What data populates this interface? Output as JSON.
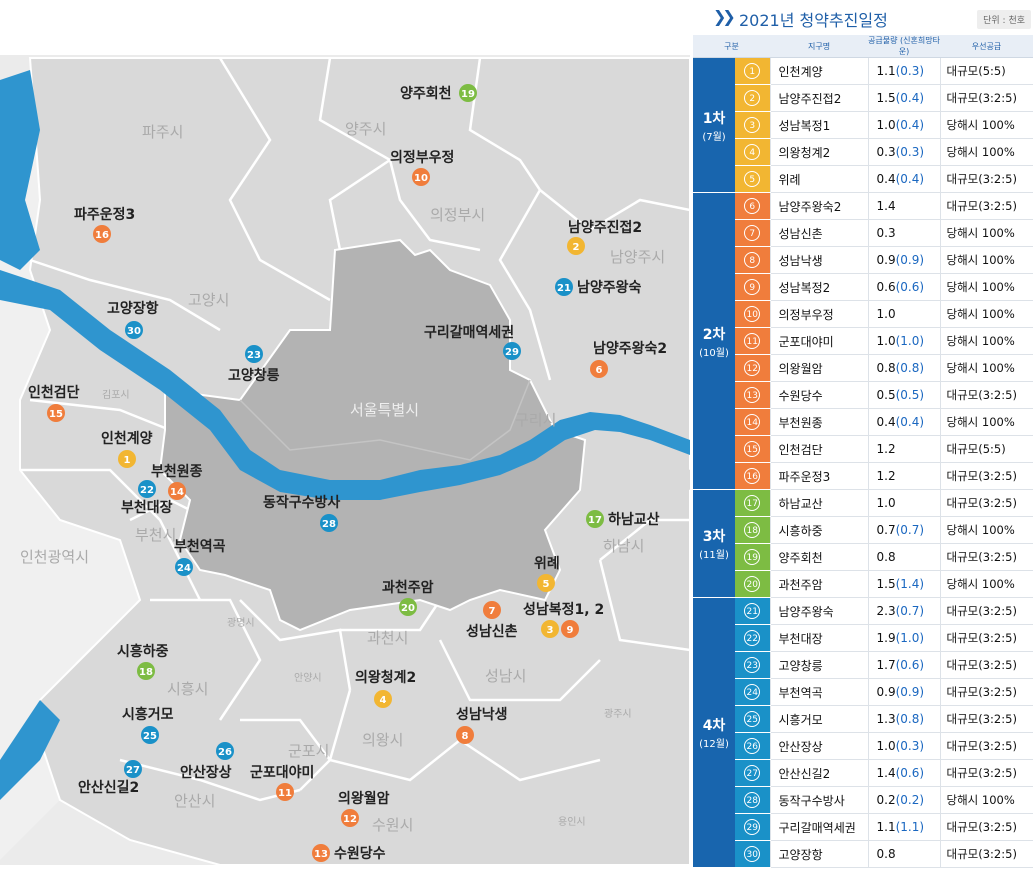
{
  "header": {
    "title": "2021년 청약추진일정",
    "unit": "단위 : 천호",
    "columns": [
      "구분",
      "지구명",
      "공급물량 (신혼희망타운)",
      "우선공급"
    ]
  },
  "colors": {
    "phase_bg": "#1865ae",
    "phase1": "#f2b632",
    "phase2": "#f07d3c",
    "phase3": "#7dbc43",
    "phase4": "#1a91c8",
    "hope_text": "#1a67c0",
    "seoul": "#b3b3b3",
    "river": "#2f95cf"
  },
  "phases": [
    {
      "label": "1차",
      "month": "(7월)",
      "color": "#f2b632",
      "rows": [
        {
          "num": "1",
          "name": "인천계양",
          "supply": "1.1",
          "hope": "(0.3)",
          "priority": "대규모(5:5)"
        },
        {
          "num": "2",
          "name": "남양주진접2",
          "supply": "1.5",
          "hope": "(0.4)",
          "priority": "대규모(3:2:5)"
        },
        {
          "num": "3",
          "name": "성남복정1",
          "supply": "1.0",
          "hope": "(0.4)",
          "priority": "당해시 100%"
        },
        {
          "num": "4",
          "name": "의왕청계2",
          "supply": "0.3",
          "hope": "(0.3)",
          "priority": "당해시 100%"
        },
        {
          "num": "5",
          "name": "위례",
          "supply": "0.4",
          "hope": "(0.4)",
          "priority": "대규모(3:2:5)"
        }
      ]
    },
    {
      "label": "2차",
      "month": "(10월)",
      "color": "#f07d3c",
      "rows": [
        {
          "num": "6",
          "name": "남양주왕숙2",
          "supply": "1.4",
          "hope": "",
          "priority": "대규모(3:2:5)"
        },
        {
          "num": "7",
          "name": "성남신촌",
          "supply": "0.3",
          "hope": "",
          "priority": "당해시 100%"
        },
        {
          "num": "8",
          "name": "성남낙생",
          "supply": "0.9",
          "hope": "(0.9)",
          "priority": "당해시 100%"
        },
        {
          "num": "9",
          "name": "성남복정2",
          "supply": "0.6",
          "hope": "(0.6)",
          "priority": "당해시 100%"
        },
        {
          "num": "10",
          "name": "의정부우정",
          "supply": "1.0",
          "hope": "",
          "priority": "당해시 100%"
        },
        {
          "num": "11",
          "name": "군포대야미",
          "supply": "1.0",
          "hope": "(1.0)",
          "priority": "당해시 100%"
        },
        {
          "num": "12",
          "name": "의왕월암",
          "supply": "0.8",
          "hope": "(0.8)",
          "priority": "당해시 100%"
        },
        {
          "num": "13",
          "name": "수원당수",
          "supply": "0.5",
          "hope": "(0.5)",
          "priority": "대규모(3:2:5)"
        },
        {
          "num": "14",
          "name": "부천원종",
          "supply": "0.4",
          "hope": "(0.4)",
          "priority": "당해시 100%"
        },
        {
          "num": "15",
          "name": "인천검단",
          "supply": "1.2",
          "hope": "",
          "priority": "대규모(5:5)"
        },
        {
          "num": "16",
          "name": "파주운정3",
          "supply": "1.2",
          "hope": "",
          "priority": "대규모(3:2:5)"
        }
      ]
    },
    {
      "label": "3차",
      "month": "(11월)",
      "color": "#7dbc43",
      "rows": [
        {
          "num": "17",
          "name": "하남교산",
          "supply": "1.0",
          "hope": "",
          "priority": "대규모(3:2:5)"
        },
        {
          "num": "18",
          "name": "시흥하중",
          "supply": "0.7",
          "hope": "(0.7)",
          "priority": "당해시 100%"
        },
        {
          "num": "19",
          "name": "양주회천",
          "supply": "0.8",
          "hope": "",
          "priority": "대규모(3:2:5)"
        },
        {
          "num": "20",
          "name": "과천주암",
          "supply": "1.5",
          "hope": "(1.4)",
          "priority": "당해시 100%"
        }
      ]
    },
    {
      "label": "4차",
      "month": "(12월)",
      "color": "#1a91c8",
      "rows": [
        {
          "num": "21",
          "name": "남양주왕숙",
          "supply": "2.3",
          "hope": "(0.7)",
          "priority": "대규모(3:2:5)"
        },
        {
          "num": "22",
          "name": "부천대장",
          "supply": "1.9",
          "hope": "(1.0)",
          "priority": "대규모(3:2:5)"
        },
        {
          "num": "23",
          "name": "고양창릉",
          "supply": "1.7",
          "hope": "(0.6)",
          "priority": "대규모(3:2:5)"
        },
        {
          "num": "24",
          "name": "부천역곡",
          "supply": "0.9",
          "hope": "(0.9)",
          "priority": "대규모(3:2:5)"
        },
        {
          "num": "25",
          "name": "시흥거모",
          "supply": "1.3",
          "hope": "(0.8)",
          "priority": "대규모(3:2:5)"
        },
        {
          "num": "26",
          "name": "안산장상",
          "supply": "1.0",
          "hope": "(0.3)",
          "priority": "대규모(3:2:5)"
        },
        {
          "num": "27",
          "name": "안산신길2",
          "supply": "1.4",
          "hope": "(0.6)",
          "priority": "대규모(3:2:5)"
        },
        {
          "num": "28",
          "name": "동작구수방사",
          "supply": "0.2",
          "hope": "(0.2)",
          "priority": "당해시 100%"
        },
        {
          "num": "29",
          "name": "구리갈매역세권",
          "supply": "1.1",
          "hope": "(1.1)",
          "priority": "대규모(3:2:5)"
        },
        {
          "num": "30",
          "name": "고양장항",
          "supply": "0.8",
          "hope": "",
          "priority": "대규모(3:2:5)"
        }
      ]
    }
  ],
  "map": {
    "regions": {
      "paju": "파주시",
      "yangju": "양주시",
      "uijeongbu": "의정부시",
      "namyangju": "남양주시",
      "goyang": "고양시",
      "gimpo": "김포시",
      "seoul": "서울특별시",
      "guri": "구리시",
      "incheon": "인천광역시",
      "bucheon": "부천시",
      "hanam": "하남시",
      "gwangmyeong": "광명시",
      "gwacheon": "과천시",
      "seongnam": "성남시",
      "siheung": "시흥시",
      "anyang": "안양시",
      "uiwang": "의왕시",
      "gwangju": "광주시",
      "gunpo": "군포시",
      "ansan": "안산시",
      "suwon": "수원시",
      "yongin": "용인시"
    },
    "markers": {
      "m1": {
        "num": "1",
        "label": "인천계양",
        "color": "#f2b632"
      },
      "m2": {
        "num": "2",
        "label": "남양주진접2",
        "color": "#f2b632"
      },
      "m3": {
        "num": "3",
        "color": "#f2b632"
      },
      "m4": {
        "num": "4",
        "label": "의왕청계2",
        "color": "#f2b632"
      },
      "m5": {
        "num": "5",
        "label": "위례",
        "color": "#f2b632"
      },
      "m6": {
        "num": "6",
        "label": "남양주왕숙2",
        "color": "#f07d3c"
      },
      "m7": {
        "num": "7",
        "label": "성남신촌",
        "color": "#f07d3c"
      },
      "m8": {
        "num": "8",
        "label": "성남낙생",
        "color": "#f07d3c"
      },
      "m9": {
        "num": "9",
        "label": "성남복정1, 2",
        "color": "#f07d3c"
      },
      "m10": {
        "num": "10",
        "label": "의정부우정",
        "color": "#f07d3c"
      },
      "m11": {
        "num": "11",
        "label": "군포대야미",
        "color": "#f07d3c"
      },
      "m12": {
        "num": "12",
        "label": "의왕월암",
        "color": "#f07d3c"
      },
      "m13": {
        "num": "13",
        "label": "수원당수",
        "color": "#f07d3c"
      },
      "m14": {
        "num": "14",
        "label": "부천원종",
        "color": "#f07d3c"
      },
      "m15": {
        "num": "15",
        "label": "인천검단",
        "color": "#f07d3c"
      },
      "m16": {
        "num": "16",
        "label": "파주운정3",
        "color": "#f07d3c"
      },
      "m17": {
        "num": "17",
        "label": "하남교산",
        "color": "#7dbc43"
      },
      "m18": {
        "num": "18",
        "label": "시흥하중",
        "color": "#7dbc43"
      },
      "m19": {
        "num": "19",
        "label": "양주회천",
        "color": "#7dbc43"
      },
      "m20": {
        "num": "20",
        "label": "과천주암",
        "color": "#7dbc43"
      },
      "m21": {
        "num": "21",
        "label": "남양주왕숙",
        "color": "#1a91c8"
      },
      "m22": {
        "num": "22",
        "label": "부천대장",
        "color": "#1a91c8"
      },
      "m23": {
        "num": "23",
        "label": "고양창릉",
        "color": "#1a91c8"
      },
      "m24": {
        "num": "24",
        "label": "부천역곡",
        "color": "#1a91c8"
      },
      "m25": {
        "num": "25",
        "label": "시흥거모",
        "color": "#1a91c8"
      },
      "m26": {
        "num": "26",
        "label": "안산장상",
        "color": "#1a91c8"
      },
      "m27": {
        "num": "27",
        "label": "안산신길2",
        "color": "#1a91c8"
      },
      "m28": {
        "num": "28",
        "label": "동작구수방사",
        "color": "#1a91c8"
      },
      "m29": {
        "num": "29",
        "label": "구리갈매역세권",
        "color": "#1a91c8"
      },
      "m30": {
        "num": "30",
        "label": "고양장항",
        "color": "#1a91c8"
      }
    }
  }
}
